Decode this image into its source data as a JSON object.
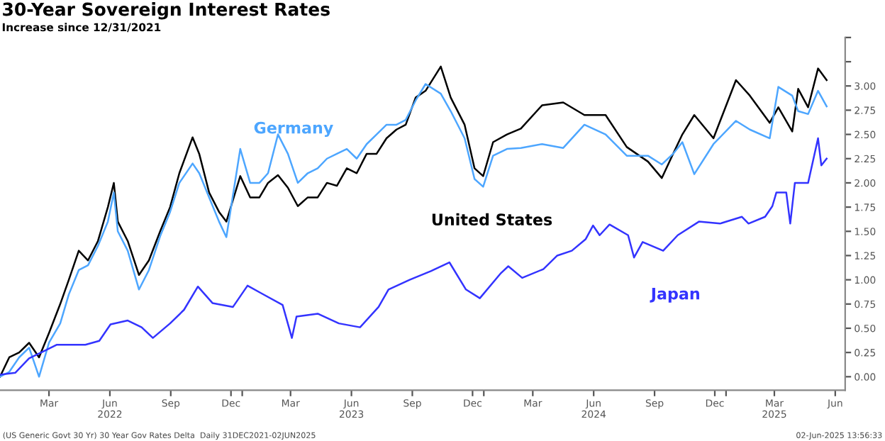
{
  "chart_data": {
    "type": "line",
    "title": "30-Year Sovereign Interest Rates",
    "subtitle": "Increase since 12/31/2021",
    "annotations": [
      "(US Generic Govt 30 Yr) 30 Year Gov Rates Delta  Daily 31DEC2021-02JUN2025",
      "02-Jun-2025 13:56:33"
    ],
    "x": [
      "2021-12-31",
      "2022-01-14",
      "2022-01-29",
      "2022-02-13",
      "2022-02-28",
      "2022-03-15",
      "2022-04-01",
      "2022-04-14",
      "2022-04-29",
      "2022-05-13",
      "2022-05-28",
      "2022-06-12",
      "2022-06-21",
      "2022-06-27",
      "2022-07-12",
      "2022-07-29",
      "2022-08-13",
      "2022-08-30",
      "2022-09-14",
      "2022-09-28",
      "2022-10-18",
      "2022-10-28",
      "2022-11-12",
      "2022-11-27",
      "2022-12-08",
      "2022-12-29",
      "2023-01-13",
      "2023-01-27",
      "2023-02-09",
      "2023-02-24",
      "2023-03-11",
      "2023-03-26",
      "2023-04-10",
      "2023-04-25",
      "2023-05-09",
      "2023-05-24",
      "2023-06-08",
      "2023-06-23",
      "2023-07-08",
      "2023-07-23",
      "2023-08-07",
      "2023-08-22",
      "2023-09-05",
      "2023-09-20",
      "2023-10-05",
      "2023-10-28",
      "2023-11-12",
      "2023-12-03",
      "2023-12-18",
      "2023-12-31",
      "2024-01-15",
      "2024-02-05",
      "2024-02-26",
      "2024-03-29",
      "2024-04-30",
      "2024-06-01",
      "2024-07-03",
      "2024-08-04",
      "2024-09-05",
      "2024-09-26",
      "2024-10-13",
      "2024-10-27",
      "2024-11-14",
      "2024-12-13",
      "2025-01-16",
      "2025-02-06",
      "2025-03-08",
      "2025-03-21",
      "2025-04-11",
      "2025-04-20",
      "2025-05-05",
      "2025-05-20",
      "2025-06-02"
    ],
    "series": [
      {
        "name": "United States",
        "color": "#000000",
        "values": [
          0,
          0.2,
          0.25,
          0.35,
          0.2,
          0.45,
          0.75,
          1.0,
          1.3,
          1.2,
          1.4,
          1.75,
          2.0,
          1.6,
          1.4,
          1.05,
          1.2,
          1.5,
          1.75,
          2.1,
          2.47,
          2.3,
          1.9,
          1.7,
          1.6,
          2.07,
          1.85,
          1.85,
          2.0,
          2.08,
          1.95,
          1.76,
          1.85,
          1.85,
          2.0,
          1.97,
          2.15,
          2.1,
          2.3,
          2.3,
          2.46,
          2.55,
          2.6,
          2.88,
          2.95,
          3.2,
          2.88,
          2.6,
          2.15,
          2.07,
          2.42,
          2.5,
          2.56,
          2.8,
          2.83,
          2.7,
          2.7,
          2.37,
          2.22,
          2.05,
          2.3,
          2.5,
          2.7,
          2.46,
          3.06,
          2.9,
          2.62,
          2.78,
          2.53,
          2.97,
          2.78,
          3.18,
          3.06
        ]
      },
      {
        "name": "Germany",
        "color": "#4da6ff",
        "values": [
          0,
          0.05,
          0.2,
          0.3,
          0.0,
          0.35,
          0.55,
          0.85,
          1.1,
          1.15,
          1.35,
          1.6,
          1.9,
          1.5,
          1.3,
          0.9,
          1.1,
          1.45,
          1.7,
          2.0,
          2.2,
          2.1,
          1.85,
          1.6,
          1.44,
          2.35,
          2.0,
          2.0,
          2.1,
          2.5,
          2.3,
          2.0,
          2.1,
          2.15,
          2.25,
          2.3,
          2.35,
          2.25,
          2.4,
          2.5,
          2.6,
          2.6,
          2.65,
          2.85,
          3.02,
          2.92,
          2.74,
          2.46,
          2.04,
          1.96,
          2.28,
          2.35,
          2.36,
          2.4,
          2.36,
          2.6,
          2.5,
          2.28,
          2.28,
          2.19,
          2.3,
          2.42,
          2.09,
          2.4,
          2.64,
          2.55,
          2.46,
          2.99,
          2.9,
          2.74,
          2.71,
          2.95,
          2.79
        ]
      },
      {
        "name": "Japan",
        "color": "#3333ff",
        "x": [
          "2021-12-31",
          "2022-01-23",
          "2022-02-13",
          "2022-03-06",
          "2022-03-27",
          "2022-05-09",
          "2022-05-30",
          "2022-06-16",
          "2022-07-12",
          "2022-08-02",
          "2022-08-19",
          "2022-09-14",
          "2022-10-05",
          "2022-10-26",
          "2022-11-17",
          "2022-12-18",
          "2023-01-09",
          "2023-01-30",
          "2023-03-03",
          "2023-03-17",
          "2023-03-24",
          "2023-04-25",
          "2023-05-27",
          "2023-06-28",
          "2023-07-26",
          "2023-08-10",
          "2023-09-11",
          "2023-10-13",
          "2023-11-10",
          "2023-12-05",
          "2023-12-26",
          "2024-01-27",
          "2024-02-07",
          "2024-02-28",
          "2024-03-31",
          "2024-04-21",
          "2024-05-13",
          "2024-06-03",
          "2024-06-14",
          "2024-06-24",
          "2024-07-09",
          "2024-08-06",
          "2024-08-15",
          "2024-08-28",
          "2024-09-28",
          "2024-10-20",
          "2024-11-21",
          "2024-12-23",
          "2025-01-25",
          "2025-02-04",
          "2025-03-01",
          "2025-03-12",
          "2025-03-18",
          "2025-04-02",
          "2025-04-08",
          "2025-04-15",
          "2025-05-05",
          "2025-05-20",
          "2025-05-25",
          "2025-06-02"
        ],
        "values": [
          0.02,
          0.04,
          0.19,
          0.26,
          0.33,
          0.33,
          0.37,
          0.54,
          0.58,
          0.51,
          0.4,
          0.55,
          0.69,
          0.93,
          0.76,
          0.72,
          0.94,
          0.86,
          0.74,
          0.4,
          0.62,
          0.65,
          0.55,
          0.51,
          0.72,
          0.9,
          1.0,
          1.09,
          1.18,
          0.9,
          0.81,
          1.07,
          1.14,
          1.02,
          1.11,
          1.25,
          1.3,
          1.42,
          1.56,
          1.46,
          1.57,
          1.46,
          1.23,
          1.39,
          1.3,
          1.46,
          1.6,
          1.58,
          1.65,
          1.58,
          1.65,
          1.76,
          1.9,
          1.9,
          1.58,
          2.0,
          2.0,
          2.46,
          2.18,
          2.25
        ]
      }
    ],
    "xlim": [
      "2021-12-31",
      "2025-06-30"
    ],
    "xticks": [
      {
        "value": "2022-03-15",
        "label": "Mar"
      },
      {
        "value": "2022-06-15",
        "label": "Jun\n2022"
      },
      {
        "value": "2022-09-15",
        "label": "Sep"
      },
      {
        "value": "2022-12-15",
        "label": "Dec"
      },
      {
        "value": "2023-01-01",
        "label": null
      },
      {
        "value": "2023-03-15",
        "label": "Mar"
      },
      {
        "value": "2023-06-15",
        "label": "Jun\n2023"
      },
      {
        "value": "2023-09-15",
        "label": "Sep"
      },
      {
        "value": "2023-12-15",
        "label": "Dec"
      },
      {
        "value": "2024-01-01",
        "label": null
      },
      {
        "value": "2024-03-15",
        "label": "Mar"
      },
      {
        "value": "2024-06-15",
        "label": "Jun\n2024"
      },
      {
        "value": "2024-09-15",
        "label": "Sep"
      },
      {
        "value": "2024-12-15",
        "label": "Dec"
      },
      {
        "value": "2025-01-01",
        "label": null
      },
      {
        "value": "2025-03-15",
        "label": "Mar\n2025"
      },
      {
        "value": "2025-06-15",
        "label": "Jun"
      }
    ],
    "ylim": [
      -0.14,
      3.5
    ],
    "yticks": [
      {
        "value": 0,
        "label": "0.00"
      },
      {
        "value": 0.25,
        "label": "0.25"
      },
      {
        "value": 0.5,
        "label": "0.50"
      },
      {
        "value": 0.75,
        "label": "0.75"
      },
      {
        "value": 1,
        "label": "1.00"
      },
      {
        "value": 1.25,
        "label": "1.25"
      },
      {
        "value": 1.5,
        "label": "1.50"
      },
      {
        "value": 1.75,
        "label": "1.75"
      },
      {
        "value": 2,
        "label": "2.00"
      },
      {
        "value": 2.25,
        "label": "2.25"
      },
      {
        "value": 2.5,
        "label": "2.50"
      },
      {
        "value": 2.75,
        "label": "2.75"
      },
      {
        "value": 3,
        "label": "3.00"
      },
      {
        "value": 3.25,
        "label": null
      },
      {
        "value": 3.5,
        "label": null
      }
    ],
    "grid": false,
    "legend": false
  }
}
